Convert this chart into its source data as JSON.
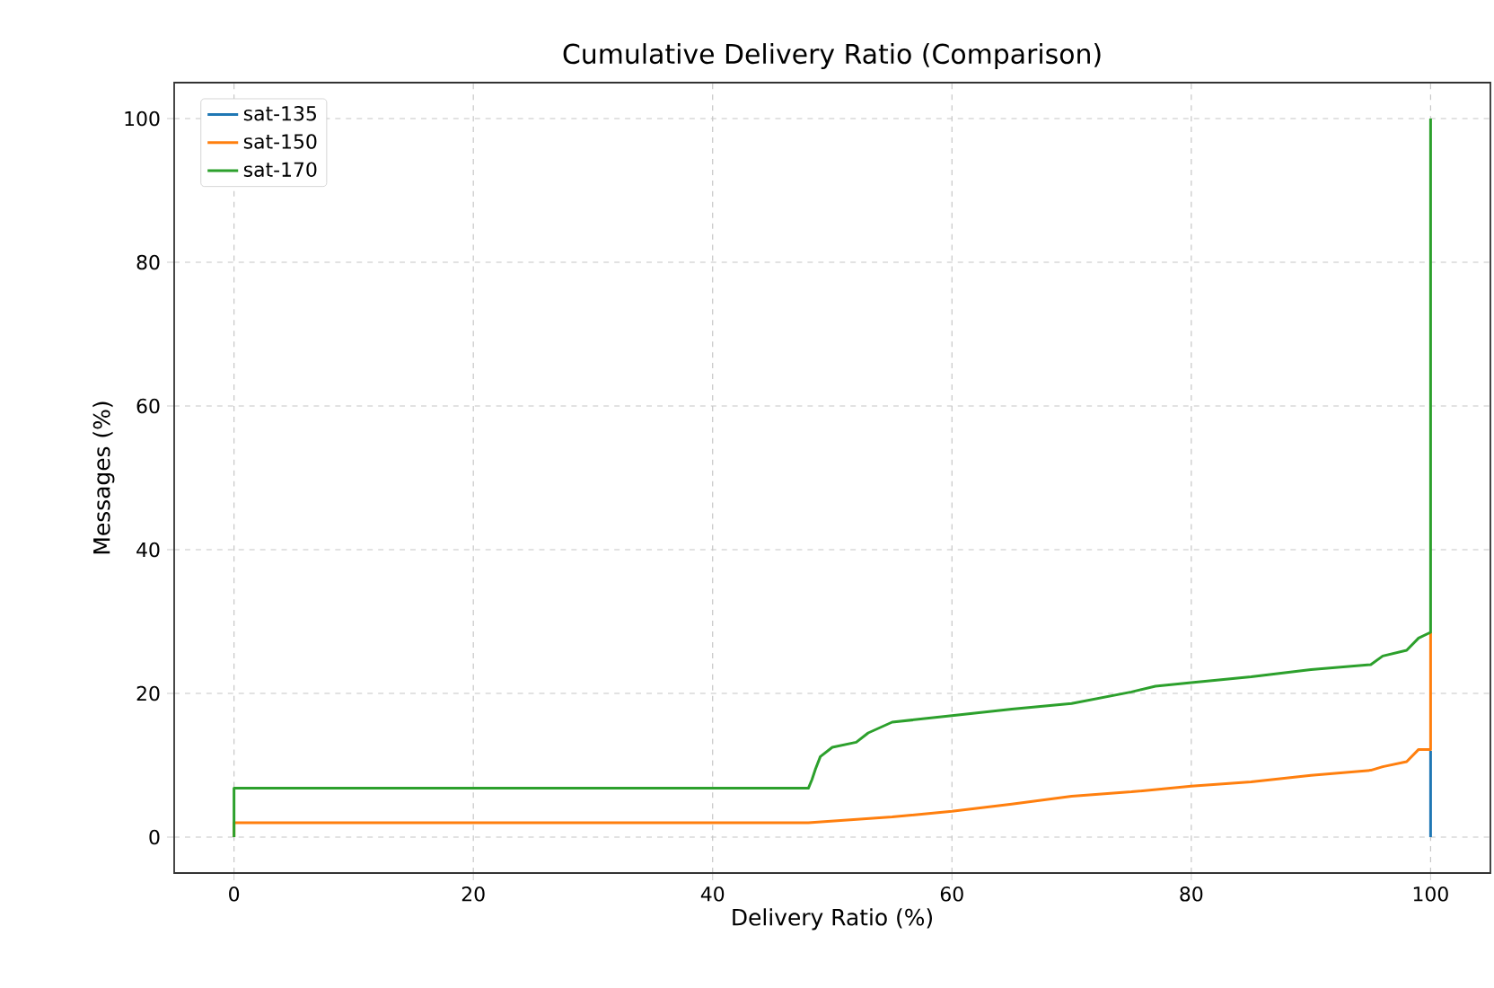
{
  "chart_data": {
    "type": "line",
    "title": "Cumulative Delivery Ratio (Comparison)",
    "xlabel": "Delivery Ratio (%)",
    "ylabel": "Messages (%)",
    "xlim": [
      -5,
      105
    ],
    "ylim": [
      -5,
      105
    ],
    "xticks": [
      0,
      20,
      40,
      60,
      80,
      100
    ],
    "yticks": [
      0,
      20,
      40,
      60,
      80,
      100
    ],
    "grid": true,
    "legend": "top left",
    "marker": "none",
    "line_style": "solid",
    "series": [
      {
        "name": "sat-135",
        "color": "#1f77b4",
        "x": [
          100,
          100
        ],
        "values": [
          0,
          12
        ]
      },
      {
        "name": "sat-150",
        "color": "#ff7f0e",
        "x": [
          0,
          0,
          48,
          55,
          60,
          65,
          70,
          75,
          80,
          85,
          90,
          95,
          96,
          98,
          99,
          100,
          100
        ],
        "values": [
          0,
          2.0,
          2.0,
          2.8,
          3.6,
          4.6,
          5.7,
          6.3,
          7.1,
          7.7,
          8.6,
          9.3,
          9.8,
          10.5,
          12.2,
          12.2,
          28.5
        ]
      },
      {
        "name": "sat-170",
        "color": "#2ca02c",
        "x": [
          0,
          0,
          48,
          48.3,
          48.6,
          49,
          50,
          52,
          53,
          55,
          60,
          65,
          70,
          75,
          77,
          80,
          85,
          90,
          95,
          96,
          98,
          99,
          100,
          100
        ],
        "values": [
          0,
          6.8,
          6.8,
          8,
          9.5,
          11.2,
          12.5,
          13.2,
          14.5,
          16,
          16.9,
          17.8,
          18.6,
          20.2,
          21,
          21.5,
          22.3,
          23.3,
          24,
          25.2,
          26,
          27.7,
          28.5,
          100
        ]
      }
    ]
  }
}
